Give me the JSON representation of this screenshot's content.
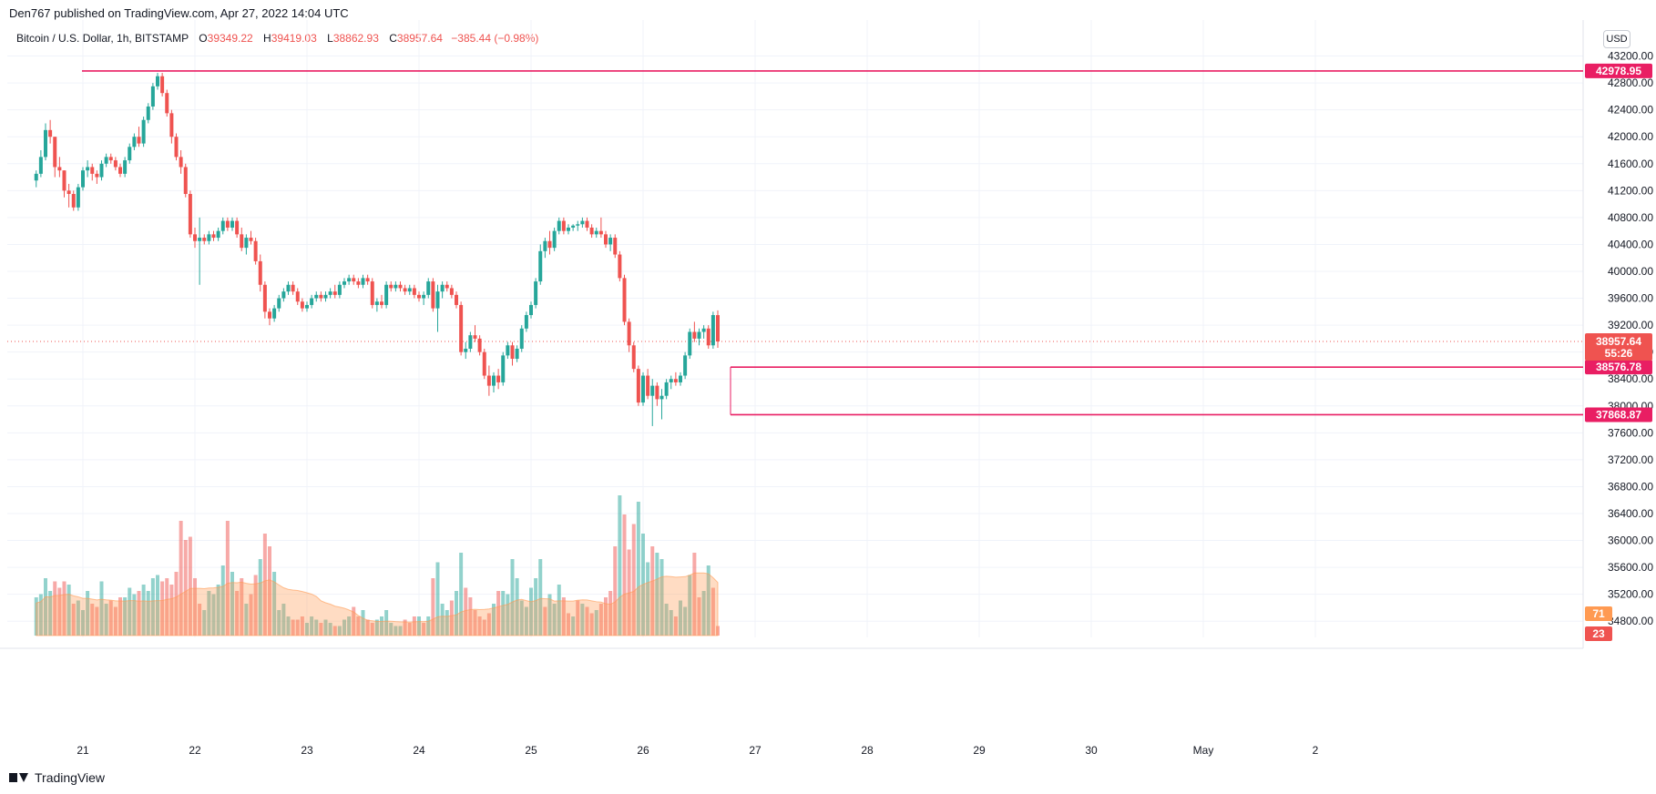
{
  "publisher_line": "Den767 published on TradingView.com, Apr 27, 2022 14:04 UTC",
  "legend": {
    "symbol": "Bitcoin / U.S. Dollar, 1h, BITSTAMP",
    "o_label": "O",
    "o_value": "39349.22",
    "h_label": "H",
    "h_value": "39419.03",
    "l_label": "L",
    "l_value": "38862.93",
    "c_label": "C",
    "c_value": "38957.64",
    "change": "−385.44 (−0.98%)"
  },
  "currency_button": "USD",
  "footer_brand": "TradingView",
  "colors": {
    "up": "#26a69a",
    "down": "#ef5350",
    "level_line": "#e91e63",
    "volume_ma": "#ff9a52",
    "grid": "#f0f3fa"
  },
  "chart_data": {
    "type": "candlestick",
    "symbol": "Bitcoin / U.S. Dollar",
    "interval": "1h",
    "exchange": "BITSTAMP",
    "y_axis": {
      "ticks": [
        "43200.00",
        "42800.00",
        "42400.00",
        "42000.00",
        "41600.00",
        "41200.00",
        "40800.00",
        "40400.00",
        "40000.00",
        "39600.00",
        "39200.00",
        "38800.00",
        "38400.00",
        "38000.00",
        "37600.00",
        "37200.00",
        "36800.00",
        "36400.00",
        "36000.00",
        "35600.00",
        "35200.00",
        "34800.00"
      ],
      "range": [
        34600,
        43600
      ]
    },
    "x_axis": {
      "ticks": [
        "21",
        "22",
        "23",
        "24",
        "25",
        "26",
        "27",
        "28",
        "29",
        "30",
        "May",
        "2"
      ],
      "tick_hours": [
        0,
        24,
        48,
        72,
        96,
        120,
        144,
        168,
        192,
        216,
        240,
        264
      ]
    },
    "last_price": {
      "value": "38957.64",
      "countdown": "55:26"
    },
    "horizontal_levels": [
      {
        "value": 42978.95,
        "label": "42978.95",
        "from_day": "20"
      },
      {
        "value": 38576.78,
        "label": "38576.78",
        "from_day": "26"
      },
      {
        "value": 37868.87,
        "label": "37868.87",
        "from_day": "26"
      }
    ],
    "volume_badges": {
      "ma": "71",
      "volume": "23"
    },
    "series_start": "Apr 20, 2022 14:00 UTC",
    "candles_ohlc": [
      [
        41350,
        41500,
        41250,
        41450
      ],
      [
        41450,
        41800,
        41400,
        41700
      ],
      [
        41700,
        42200,
        41650,
        42100
      ],
      [
        42100,
        42250,
        41900,
        42000
      ],
      [
        42000,
        42000,
        41400,
        41550
      ],
      [
        41550,
        41700,
        41400,
        41500
      ],
      [
        41500,
        41500,
        41100,
        41200
      ],
      [
        41200,
        41300,
        40950,
        41150
      ],
      [
        41150,
        41200,
        40900,
        40950
      ],
      [
        40950,
        41300,
        40900,
        41250
      ],
      [
        41250,
        41550,
        41200,
        41500
      ],
      [
        41500,
        41650,
        41400,
        41550
      ],
      [
        41550,
        41600,
        41350,
        41450
      ],
      [
        41450,
        41500,
        41300,
        41400
      ],
      [
        41400,
        41650,
        41350,
        41600
      ],
      [
        41600,
        41750,
        41550,
        41700
      ],
      [
        41700,
        41750,
        41600,
        41650
      ],
      [
        41650,
        41700,
        41500,
        41550
      ],
      [
        41550,
        41600,
        41400,
        41450
      ],
      [
        41450,
        41700,
        41400,
        41650
      ],
      [
        41650,
        41900,
        41600,
        41850
      ],
      [
        41850,
        42050,
        41800,
        42000
      ],
      [
        42000,
        42150,
        41850,
        41900
      ],
      [
        41900,
        42300,
        41850,
        42250
      ],
      [
        42250,
        42500,
        42200,
        42450
      ],
      [
        42450,
        42800,
        42400,
        42750
      ],
      [
        42750,
        42950,
        42700,
        42900
      ],
      [
        42900,
        42950,
        42600,
        42650
      ],
      [
        42650,
        42700,
        42300,
        42350
      ],
      [
        42350,
        42400,
        41900,
        42000
      ],
      [
        42000,
        42050,
        41650,
        41700
      ],
      [
        41700,
        41800,
        41450,
        41550
      ],
      [
        41550,
        41600,
        41100,
        41150
      ],
      [
        41150,
        41200,
        40500,
        40550
      ],
      [
        40550,
        40650,
        40350,
        40450
      ],
      [
        40450,
        40800,
        39800,
        40500
      ],
      [
        40500,
        40550,
        40400,
        40450
      ],
      [
        40450,
        40600,
        40400,
        40550
      ],
      [
        40550,
        40600,
        40450,
        40500
      ],
      [
        40500,
        40650,
        40450,
        40600
      ],
      [
        40600,
        40800,
        40550,
        40750
      ],
      [
        40750,
        40800,
        40600,
        40650
      ],
      [
        40650,
        40800,
        40600,
        40750
      ],
      [
        40750,
        40800,
        40500,
        40550
      ],
      [
        40550,
        40650,
        40300,
        40350
      ],
      [
        40350,
        40550,
        40250,
        40500
      ],
      [
        40500,
        40600,
        40400,
        40450
      ],
      [
        40450,
        40500,
        40100,
        40150
      ],
      [
        40150,
        40250,
        39700,
        39800
      ],
      [
        39800,
        39850,
        39300,
        39400
      ],
      [
        39400,
        39450,
        39200,
        39300
      ],
      [
        39300,
        39500,
        39250,
        39450
      ],
      [
        39450,
        39650,
        39400,
        39600
      ],
      [
        39600,
        39750,
        39550,
        39700
      ],
      [
        39700,
        39850,
        39650,
        39800
      ],
      [
        39800,
        39850,
        39650,
        39700
      ],
      [
        39700,
        39750,
        39500,
        39550
      ],
      [
        39550,
        39600,
        39400,
        39450
      ],
      [
        39450,
        39550,
        39400,
        39500
      ],
      [
        39500,
        39650,
        39450,
        39600
      ],
      [
        39600,
        39700,
        39550,
        39650
      ],
      [
        39650,
        39700,
        39550,
        39600
      ],
      [
        39600,
        39700,
        39550,
        39650
      ],
      [
        39650,
        39750,
        39600,
        39700
      ],
      [
        39700,
        39800,
        39600,
        39650
      ],
      [
        39650,
        39850,
        39600,
        39800
      ],
      [
        39800,
        39900,
        39750,
        39850
      ],
      [
        39850,
        39950,
        39800,
        39900
      ],
      [
        39900,
        39950,
        39800,
        39850
      ],
      [
        39850,
        39900,
        39750,
        39800
      ],
      [
        39800,
        39950,
        39750,
        39900
      ],
      [
        39900,
        39950,
        39800,
        39850
      ],
      [
        39850,
        39900,
        39450,
        39500
      ],
      [
        39500,
        39600,
        39400,
        39550
      ],
      [
        39550,
        39650,
        39450,
        39500
      ],
      [
        39500,
        39850,
        39450,
        39800
      ],
      [
        39800,
        39850,
        39700,
        39750
      ],
      [
        39750,
        39850,
        39700,
        39800
      ],
      [
        39800,
        39850,
        39700,
        39750
      ],
      [
        39750,
        39800,
        39650,
        39700
      ],
      [
        39700,
        39800,
        39650,
        39750
      ],
      [
        39750,
        39800,
        39600,
        39650
      ],
      [
        39650,
        39700,
        39550,
        39600
      ],
      [
        39600,
        39700,
        39500,
        39650
      ],
      [
        39650,
        39900,
        39600,
        39850
      ],
      [
        39850,
        39900,
        39400,
        39450
      ],
      [
        39450,
        39800,
        39100,
        39700
      ],
      [
        39700,
        39850,
        39600,
        39800
      ],
      [
        39800,
        39850,
        39700,
        39750
      ],
      [
        39750,
        39800,
        39600,
        39650
      ],
      [
        39650,
        39700,
        39450,
        39500
      ],
      [
        39500,
        39550,
        38750,
        38800
      ],
      [
        38800,
        38950,
        38700,
        38850
      ],
      [
        38850,
        39100,
        38800,
        39050
      ],
      [
        39050,
        39200,
        38950,
        39000
      ],
      [
        39000,
        39050,
        38750,
        38800
      ],
      [
        38800,
        38850,
        38400,
        38450
      ],
      [
        38450,
        38600,
        38150,
        38300
      ],
      [
        38300,
        38500,
        38200,
        38450
      ],
      [
        38450,
        38550,
        38250,
        38350
      ],
      [
        38350,
        38800,
        38300,
        38750
      ],
      [
        38750,
        38950,
        38700,
        38900
      ],
      [
        38900,
        38950,
        38600,
        38700
      ],
      [
        38700,
        38900,
        38650,
        38850
      ],
      [
        38850,
        39200,
        38800,
        39150
      ],
      [
        39150,
        39400,
        39100,
        39350
      ],
      [
        39350,
        39550,
        39300,
        39500
      ],
      [
        39500,
        39900,
        39450,
        39850
      ],
      [
        39850,
        40400,
        39800,
        40300
      ],
      [
        40300,
        40500,
        40200,
        40450
      ],
      [
        40450,
        40600,
        40250,
        40350
      ],
      [
        40350,
        40650,
        40300,
        40600
      ],
      [
        40600,
        40800,
        40550,
        40750
      ],
      [
        40750,
        40800,
        40550,
        40600
      ],
      [
        40600,
        40700,
        40550,
        40650
      ],
      [
        40650,
        40700,
        40600,
        40680
      ],
      [
        40680,
        40750,
        40600,
        40700
      ],
      [
        40700,
        40800,
        40650,
        40750
      ],
      [
        40750,
        40800,
        40600,
        40650
      ],
      [
        40650,
        40700,
        40500,
        40550
      ],
      [
        40550,
        40650,
        40500,
        40600
      ],
      [
        40600,
        40800,
        40500,
        40550
      ],
      [
        40550,
        40600,
        40350,
        40400
      ],
      [
        40400,
        40550,
        40300,
        40500
      ],
      [
        40500,
        40550,
        40200,
        40250
      ],
      [
        40250,
        40300,
        39850,
        39900
      ],
      [
        39900,
        39950,
        39200,
        39250
      ],
      [
        39250,
        39300,
        38800,
        38900
      ],
      [
        38900,
        38950,
        38500,
        38550
      ],
      [
        38550,
        38600,
        38000,
        38050
      ],
      [
        38050,
        38500,
        38000,
        38450
      ],
      [
        38450,
        38550,
        38100,
        38150
      ],
      [
        38150,
        38400,
        37700,
        38300
      ],
      [
        38300,
        38350,
        38000,
        38100
      ],
      [
        38100,
        38250,
        37800,
        38150
      ],
      [
        38150,
        38400,
        38100,
        38350
      ],
      [
        38350,
        38450,
        38250,
        38400
      ],
      [
        38400,
        38500,
        38300,
        38350
      ],
      [
        38350,
        38500,
        38300,
        38450
      ],
      [
        38450,
        38800,
        38400,
        38750
      ],
      [
        38750,
        39150,
        38700,
        39100
      ],
      [
        39100,
        39250,
        38950,
        39000
      ],
      [
        39000,
        39150,
        38900,
        39100
      ],
      [
        39100,
        39200,
        39000,
        39150
      ],
      [
        39150,
        39200,
        38850,
        38900
      ],
      [
        38900,
        39400,
        38850,
        39350
      ],
      [
        39349.22,
        39419.03,
        38862.93,
        38957.64
      ]
    ],
    "volumes": [
      12,
      13,
      18,
      14,
      17,
      15,
      17,
      16,
      10,
      11,
      8,
      14,
      10,
      9,
      17,
      10,
      11,
      9,
      12,
      12,
      15,
      13,
      14,
      16,
      14,
      18,
      19,
      17,
      18,
      16,
      20,
      36,
      30,
      31,
      18,
      10,
      8,
      14,
      13,
      16,
      22,
      36,
      20,
      14,
      18,
      10,
      13,
      19,
      24,
      32,
      28,
      20,
      8,
      10,
      6,
      5,
      5,
      6,
      4,
      6,
      5,
      4,
      5,
      4,
      3,
      3,
      5,
      6,
      9,
      6,
      8,
      5,
      4,
      5,
      6,
      8,
      4,
      3,
      3,
      5,
      4,
      6,
      6,
      4,
      6,
      18,
      23,
      10,
      8,
      11,
      14,
      26,
      15,
      12,
      8,
      6,
      5,
      7,
      10,
      14,
      14,
      13,
      24,
      18,
      11,
      9,
      15,
      18,
      24,
      9,
      13,
      10,
      16,
      12,
      7,
      6,
      11,
      10,
      9,
      7,
      8,
      10,
      12,
      14,
      28,
      44,
      38,
      27,
      35,
      42,
      32,
      23,
      28,
      26,
      24,
      10,
      8,
      6,
      11,
      9,
      19,
      26,
      12,
      14,
      22,
      15,
      3
    ],
    "volume_colors_up": [
      0,
      1,
      2,
      3,
      7,
      9,
      10,
      11,
      14,
      15,
      19,
      20,
      21,
      23,
      24,
      25,
      26,
      36,
      37,
      38,
      39,
      40,
      42,
      45,
      48,
      51,
      52,
      53,
      54,
      58,
      59,
      60,
      62,
      63,
      65,
      66,
      67,
      70,
      73,
      74,
      75,
      76,
      77,
      78,
      82,
      84,
      86,
      87,
      88,
      90,
      91,
      98,
      100,
      101,
      102,
      103,
      104,
      105,
      106,
      107,
      108,
      110,
      111,
      112,
      115,
      117,
      120,
      125,
      129,
      130,
      131,
      133,
      134,
      135,
      136,
      138,
      139,
      140,
      143,
      144
    ]
  }
}
